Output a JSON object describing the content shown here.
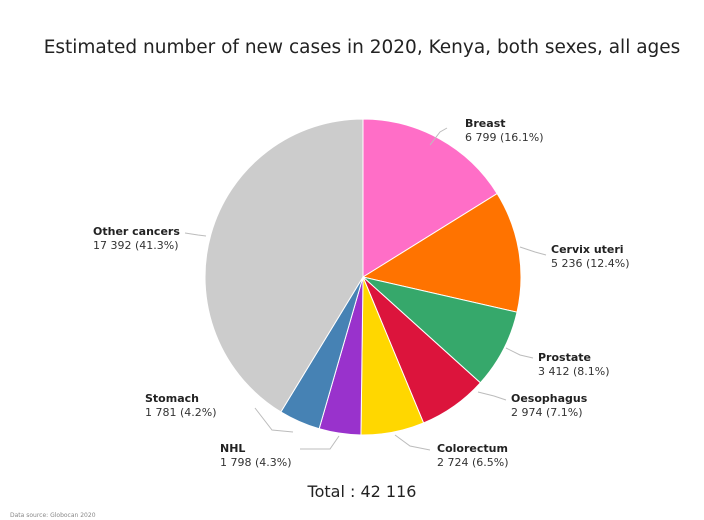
{
  "chart_data": {
    "type": "pie",
    "title": "Estimated number of new cases in 2020, Kenya, both sexes, all ages",
    "total_label": "Total : 42 116",
    "slices": [
      {
        "name": "Breast",
        "value": 6799,
        "value_label": "6 799 (16.1%)",
        "color": "#ff6ec7"
      },
      {
        "name": "Cervix uteri",
        "value": 5236,
        "value_label": "5 236 (12.4%)",
        "color": "#ff7300"
      },
      {
        "name": "Prostate",
        "value": 3412,
        "value_label": "3 412 (8.1%)",
        "color": "#36a86b"
      },
      {
        "name": "Oesophagus",
        "value": 2974,
        "value_label": "2 974 (7.1%)",
        "color": "#dc143c"
      },
      {
        "name": "Colorectum",
        "value": 2724,
        "value_label": "2 724 (6.5%)",
        "color": "#ffd700"
      },
      {
        "name": "NHL",
        "value": 1798,
        "value_label": "1 798 (4.3%)",
        "color": "#9932cc"
      },
      {
        "name": "Stomach",
        "value": 1781,
        "value_label": "1 781 (4.2%)",
        "color": "#4682b4"
      },
      {
        "name": "Other cancers",
        "value": 17392,
        "value_label": "17 392 (41.3%)",
        "color": "#cccccc"
      }
    ]
  },
  "footnote": "Data source: Globocan 2020"
}
